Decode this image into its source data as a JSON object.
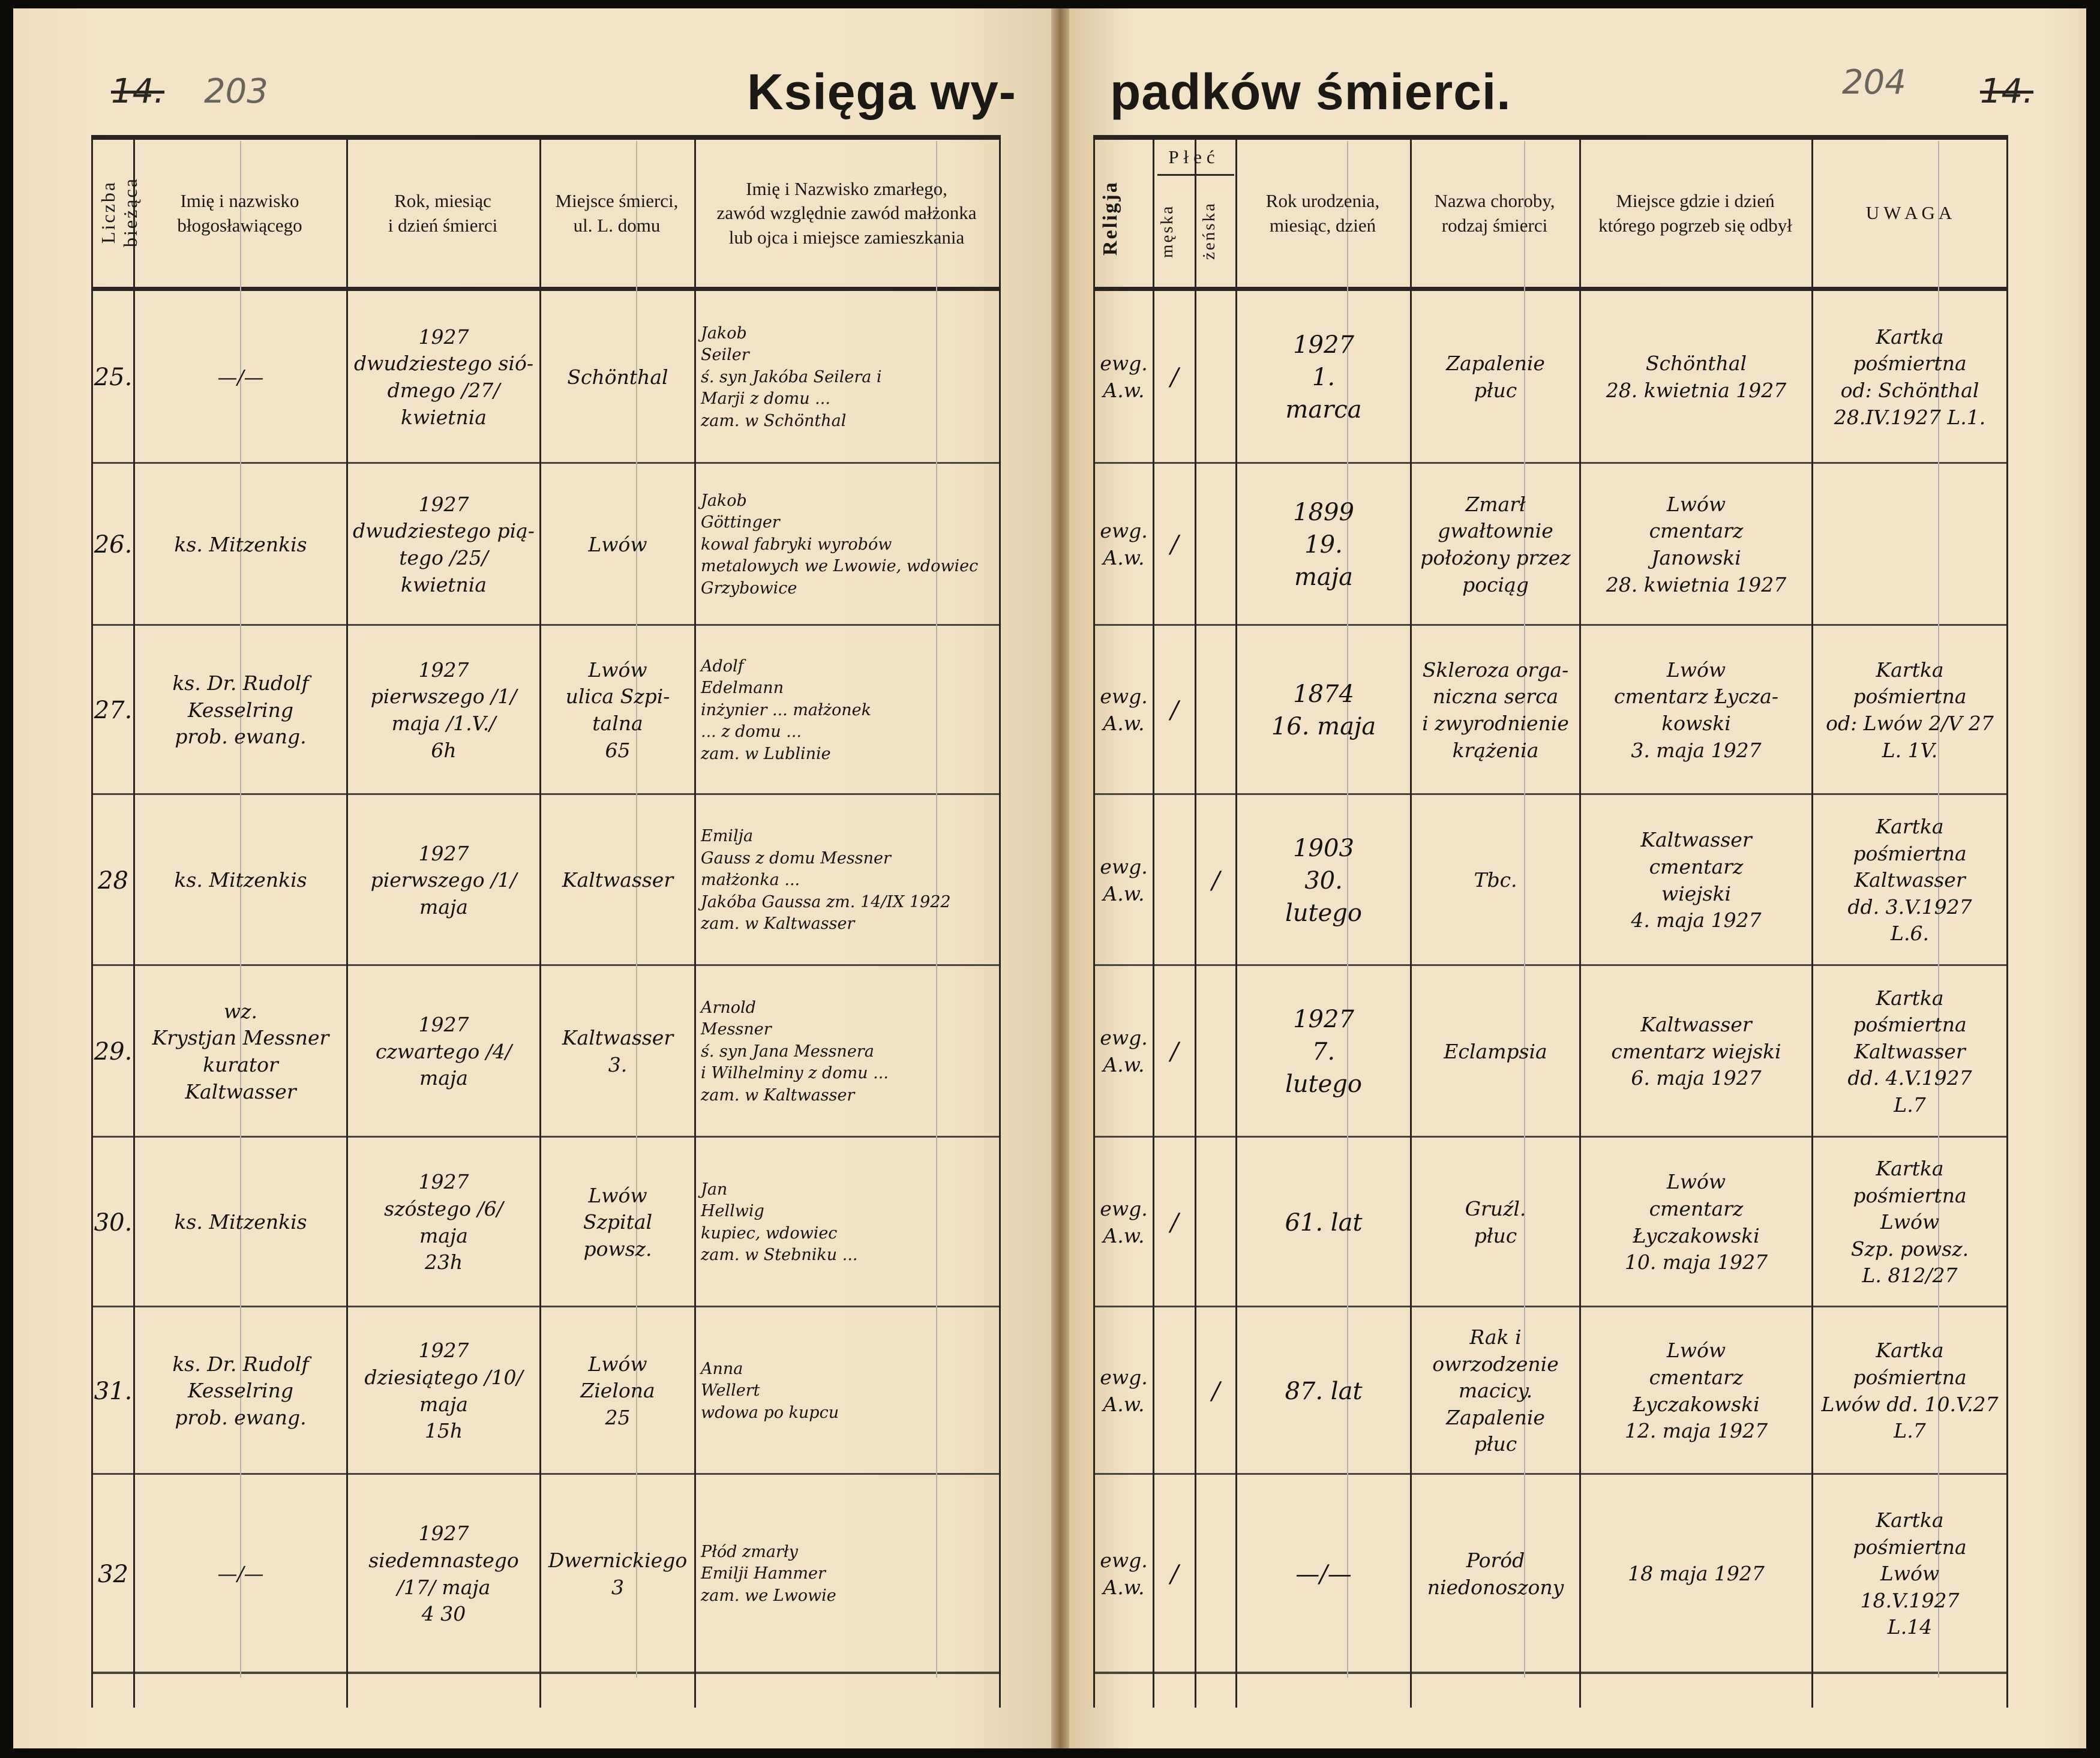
{
  "title": {
    "left": "Księga wy-",
    "right": "padków śmierci."
  },
  "page_numbers": {
    "left_old": "14.",
    "left_new": "203",
    "right_new": "204",
    "right_old": "14."
  },
  "headers": {
    "nr": "Liczba bieżąca",
    "blesser": "Imię i nazwisko\nbłogosławiącego",
    "death_date": "Rok, miesiąc\ni dzień śmierci",
    "place": "Miejsce śmierci,\nul. L. domu",
    "deceased": "Imię i Nazwisko zmarłego,\nzawód względnie zawód małżonka\nlub ojca i miejsce zamieszkania",
    "religion": "Religja",
    "sex": "Płeć",
    "male": "męska",
    "female": "żeńska",
    "birth": "Rok urodzenia,\nmiesiąc, dzień",
    "disease": "Nazwa choroby,\nrodzaj śmierci",
    "burial": "Miejsce gdzie i dzień\nktórego pogrzeb się odbył",
    "remarks": "U W A G A"
  },
  "rows": [
    {
      "nr": "25.",
      "blesser": "—/—",
      "death_date": "1927\ndwudziestego sió-\ndmego /27/\nkwietnia",
      "place": "Schönthal",
      "deceased": "Jakob\nSeiler\nś. syn Jakóba Seilera i\nMarji z domu ...\nzam. w Schönthal",
      "religion": "ewg.\nA.w.",
      "male": "/",
      "female": "",
      "birth": "1927\n1.\nmarca",
      "disease": "Zapalenie\npłuc",
      "burial": "Schönthal\n28. kwietnia 1927",
      "remarks": "Kartka\npośmiertna\nod: Schönthal\n28.IV.1927 L.1."
    },
    {
      "nr": "26.",
      "blesser": "ks. Mitzenkis",
      "death_date": "1927\ndwudziestego pią-\ntego /25/\nkwietnia",
      "place": "Lwów",
      "deceased": "Jakob\nGöttinger\nkowal fabryki wyrobów\nmetalowych we Lwowie, wdowiec\nGrzybowice",
      "religion": "ewg.\nA.w.",
      "male": "/",
      "female": "",
      "birth": "1899\n19.\nmaja",
      "disease": "Zmarł\ngwałtownie\npołożony przez\npociąg",
      "burial": "Lwów\ncmentarz\nJanowski\n28. kwietnia 1927",
      "remarks": ""
    },
    {
      "nr": "27.",
      "blesser": "ks. Dr. Rudolf\nKesselring\nprob. ewang.",
      "death_date": "1927\npierwszego /1/\nmaja /1.V./\n6h",
      "place": "Lwów\nulica Szpi-\ntalna\n65",
      "deceased": "Adolf\nEdelmann\ninżynier ... małżonek\n... z domu ...\nzam. w Lublinie",
      "religion": "ewg.\nA.w.",
      "male": "/",
      "female": "",
      "birth": "1874\n16. maja",
      "disease": "Skleroza orga-\nniczna serca\ni zwyrodnienie\nkrążenia",
      "burial": "Lwów\ncmentarz Łycza-\nkowski\n3. maja 1927",
      "remarks": "Kartka\npośmiertna\nod: Lwów 2/V 27\nL. 1V."
    },
    {
      "nr": "28",
      "blesser": "ks. Mitzenkis",
      "death_date": "1927\npierwszego /1/\nmaja",
      "place": "Kaltwasser",
      "deceased": "Emilja\nGauss z domu Messner\nmałżonka ...\nJakóba Gaussa zm. 14/IX 1922\nzam. w Kaltwasser",
      "religion": "ewg.\nA.w.",
      "male": "",
      "female": "/",
      "birth": "1903\n30.\nlutego",
      "disease": "Tbc.",
      "burial": "Kaltwasser\ncmentarz\nwiejski\n4. maja 1927",
      "remarks": "Kartka\npośmiertna\nKaltwasser\ndd. 3.V.1927\nL.6."
    },
    {
      "nr": "29.",
      "blesser": "wz.\nKrystjan Messner\nkurator\nKaltwasser",
      "death_date": "1927\nczwartego /4/\nmaja",
      "place": "Kaltwasser\n3.",
      "deceased": "Arnold\nMessner\nś. syn Jana Messnera\ni Wilhelminy z domu ...\nzam. w Kaltwasser",
      "religion": "ewg.\nA.w.",
      "male": "/",
      "female": "",
      "birth": "1927\n7.\nlutego",
      "disease": "Eclampsia",
      "burial": "Kaltwasser\ncmentarz wiejski\n6. maja 1927",
      "remarks": "Kartka\npośmiertna\nKaltwasser\ndd. 4.V.1927\nL.7"
    },
    {
      "nr": "30.",
      "blesser": "ks. Mitzenkis",
      "death_date": "1927\nszóstego /6/\nmaja\n23h",
      "place": "Lwów\nSzpital\npowsz.",
      "deceased": "Jan\nHellwig\nkupiec, wdowiec\nzam. w Stebniku ...",
      "religion": "ewg.\nA.w.",
      "male": "/",
      "female": "",
      "birth": "61. lat",
      "disease": "Gruźl.\npłuc",
      "burial": "Lwów\ncmentarz\nŁyczakowski\n10. maja 1927",
      "remarks": "Kartka\npośmiertna\nLwów\nSzp. powsz.\nL. 812/27"
    },
    {
      "nr": "31.",
      "blesser": "ks. Dr. Rudolf\nKesselring\nprob. ewang.",
      "death_date": "1927\ndziesiątego /10/\nmaja\n15h",
      "place": "Lwów\nZielona\n25",
      "deceased": "Anna\nWellert\nwdowa po kupcu",
      "religion": "ewg.\nA.w.",
      "male": "",
      "female": "/",
      "birth": "87. lat",
      "disease": "Rak i owrzodzenie\nmacicy.\nZapalenie\npłuc",
      "burial": "Lwów\ncmentarz\nŁyczakowski\n12. maja 1927",
      "remarks": "Kartka\npośmiertna\nLwów dd. 10.V.27\nL.7"
    },
    {
      "nr": "32",
      "blesser": "—/—",
      "death_date": "1927\nsiedemnastego\n/17/ maja\n4 30",
      "place": "Dwernickiego\n3",
      "deceased": "Płód zmarły\nEmilji Hammer\nzam. we Lwowie",
      "religion": "ewg.\nA.w.",
      "male": "/",
      "female": "",
      "birth": "—/—",
      "disease": "Poród\nniedonoszony",
      "burial": "18 maja 1927",
      "remarks": "Kartka\npośmiertna\nLwów\n18.V.1927\nL.14"
    }
  ],
  "colors": {
    "paper": "#f2e2c6",
    "ink": "#16120d",
    "rule": "#2a2520"
  }
}
